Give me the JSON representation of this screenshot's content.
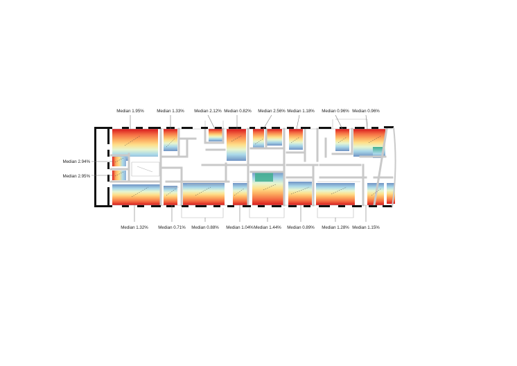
{
  "labels_top": [
    {
      "id": "r1",
      "text": "Median 1.95%"
    },
    {
      "id": "r2",
      "text": "Median 1.33%"
    },
    {
      "id": "r3",
      "text": "Median 2.12%"
    },
    {
      "id": "r4",
      "text": "Median 0.82%"
    },
    {
      "id": "r5",
      "text": "Median 2.56%"
    },
    {
      "id": "r6",
      "text": "Median 1.18%"
    },
    {
      "id": "r7",
      "text": "Median 0.96%"
    },
    {
      "id": "r8",
      "text": "Median 0.96%"
    }
  ],
  "labels_left": [
    {
      "id": "r9",
      "text": "Median 2.94%"
    },
    {
      "id": "r10",
      "text": "Median 2.95%"
    }
  ],
  "labels_bottom": [
    {
      "id": "r11",
      "text": "Median 1.32%"
    },
    {
      "id": "r12",
      "text": "Median 0.71%"
    },
    {
      "id": "r13",
      "text": "Median 0.88%"
    },
    {
      "id": "r14",
      "text": "Median 1.04%"
    },
    {
      "id": "r15",
      "text": "Median 1.44%"
    },
    {
      "id": "r16",
      "text": "Median 0.89%"
    },
    {
      "id": "r17",
      "text": "Median 1.28%"
    },
    {
      "id": "r18",
      "text": "Median 1.15%"
    }
  ],
  "colors": {
    "hot": "#d7191c",
    "warm": "#fdae61",
    "mid": "#ffffbf",
    "cool": "#abd9e9",
    "cold": "#6f93c4",
    "teal": "#3fae8e",
    "partition": "#c9c9c9",
    "wall": "#111111"
  }
}
